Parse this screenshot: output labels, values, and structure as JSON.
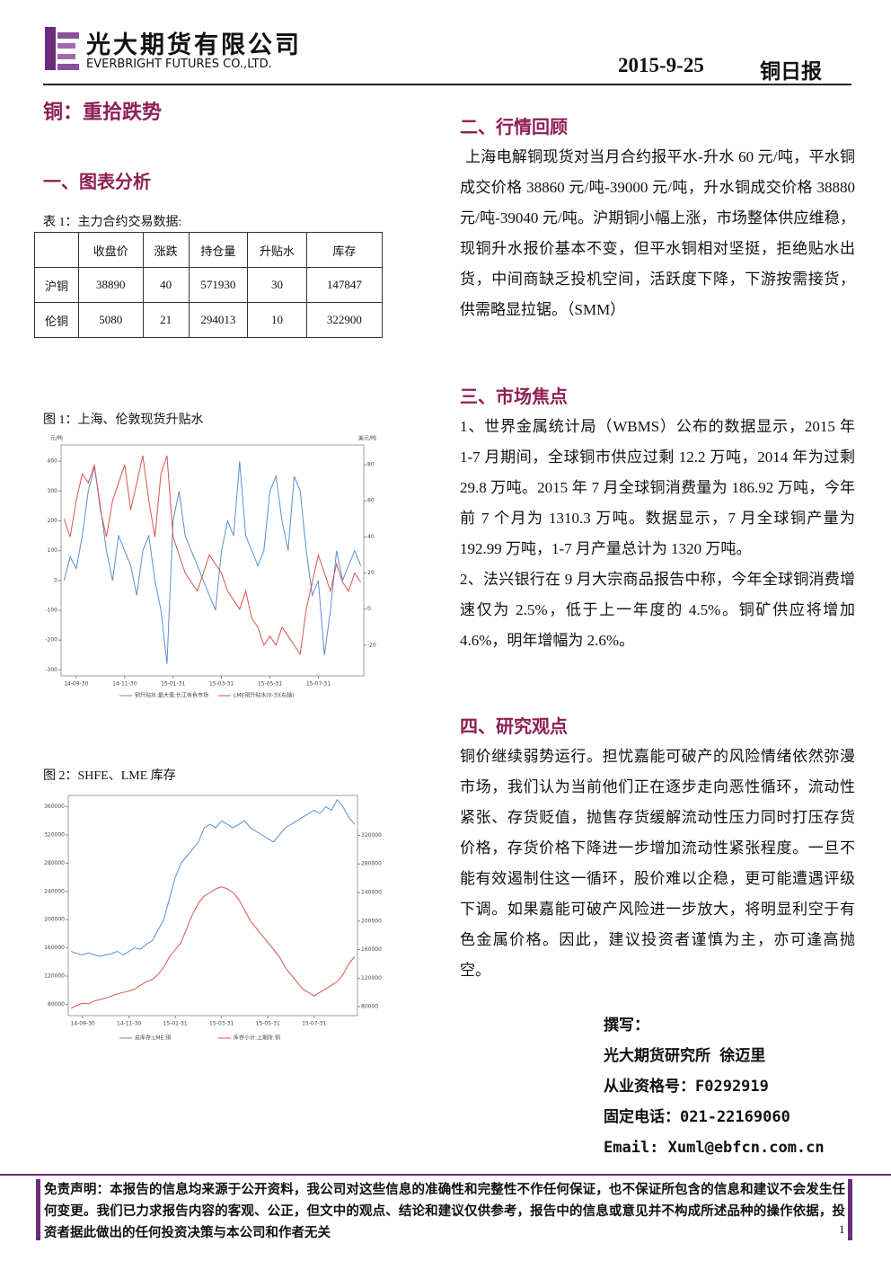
{
  "header": {
    "company_cn": "光大期货有限公司",
    "company_en": "EVERBRIGHT FUTURES CO.,LTD.",
    "date": "2015-9-25",
    "report": "铜日报"
  },
  "title": "铜：重拾跌势",
  "section1": {
    "heading": "一、图表分析"
  },
  "table": {
    "caption": "表 1：主力合约交易数据:",
    "columns": [
      "收盘价",
      "涨跌",
      "持仓量",
      "升贴水",
      "库存"
    ],
    "rows": [
      [
        "沪铜",
        38890,
        40,
        571930,
        30,
        147847
      ],
      [
        "伦铜",
        5080,
        21,
        294013,
        10,
        322900
      ]
    ]
  },
  "chart_data": [
    {
      "type": "line",
      "title": "图 1：上海、伦敦现货升贴水",
      "y_label": "元/吨",
      "y2_label": "美元/吨",
      "categories": [
        null,
        null,
        "14-09-30",
        null,
        null,
        null,
        null,
        null,
        null,
        null,
        "14-11-30",
        null,
        null,
        null,
        null,
        null,
        null,
        null,
        "15-01-31",
        null,
        null,
        null,
        null,
        null,
        null,
        null,
        "15-03-31",
        null,
        null,
        null,
        null,
        null,
        null,
        null,
        "15-05-31",
        null,
        null,
        null,
        null,
        null,
        null,
        null,
        "15-07-31",
        null,
        null,
        null,
        null,
        null,
        null,
        null
      ],
      "ylim": [
        -320,
        455
      ],
      "yticks": [
        -300,
        -200,
        -100,
        0,
        100,
        200,
        300,
        400
      ],
      "y2lim": [
        -37,
        91
      ],
      "y2ticks": [
        -20,
        0,
        20,
        40,
        60,
        80
      ],
      "series": [
        {
          "name": "铜升贴水:最大值:长江有色市场",
          "color": "#5b8fd0",
          "values": [
            0,
            80,
            40,
            150,
            300,
            380,
            250,
            100,
            0,
            150,
            100,
            50,
            -50,
            100,
            150,
            0,
            -100,
            -280,
            200,
            300,
            150,
            100,
            50,
            0,
            -50,
            -100,
            100,
            200,
            150,
            400,
            150,
            100,
            50,
            100,
            300,
            350,
            200,
            100,
            350,
            300,
            100,
            -50,
            0,
            -250,
            -100,
            100,
            0,
            50,
            100,
            50
          ]
        },
        {
          "name": "LME铜升贴水(0-3)(右轴)",
          "color": "#d9534f",
          "axis": "y2",
          "values": [
            50,
            40,
            60,
            75,
            70,
            80,
            55,
            40,
            60,
            70,
            80,
            55,
            70,
            85,
            60,
            40,
            75,
            85,
            40,
            30,
            20,
            15,
            10,
            20,
            30,
            25,
            20,
            10,
            5,
            0,
            10,
            -5,
            -10,
            -20,
            -15,
            -20,
            -10,
            -15,
            -20,
            -25,
            0,
            15,
            30,
            20,
            10,
            25,
            15,
            10,
            20,
            15
          ]
        }
      ]
    },
    {
      "type": "line",
      "title": "图 2：SHFE、LME 库存",
      "categories": [
        null,
        null,
        "14-09-30",
        null,
        null,
        null,
        null,
        null,
        null,
        null,
        "14-11-30",
        null,
        null,
        null,
        null,
        null,
        null,
        null,
        "15-01-31",
        null,
        null,
        null,
        null,
        null,
        null,
        null,
        "15-03-31",
        null,
        null,
        null,
        null,
        null,
        null,
        null,
        "15-05-31",
        null,
        null,
        null,
        null,
        null,
        null,
        null,
        "15-07-31",
        null,
        null,
        null,
        null,
        null,
        null,
        null
      ],
      "ylim": [
        64000,
        376000
      ],
      "yticks": [
        80000,
        120000,
        160000,
        200000,
        240000,
        280000,
        320000,
        360000
      ],
      "y2lim": [
        67500,
        376000
      ],
      "y2ticks": [
        80000,
        120000,
        160000,
        200000,
        240000,
        280000,
        320000
      ],
      "series": [
        {
          "name": "总库存:LME:铜",
          "color": "#5b8fd0",
          "values": [
            155000,
            152000,
            150000,
            153000,
            150000,
            148000,
            150000,
            152000,
            155000,
            150000,
            155000,
            160000,
            158000,
            165000,
            170000,
            185000,
            200000,
            230000,
            260000,
            280000,
            290000,
            300000,
            310000,
            330000,
            335000,
            330000,
            340000,
            335000,
            330000,
            335000,
            340000,
            330000,
            325000,
            320000,
            315000,
            310000,
            320000,
            330000,
            335000,
            340000,
            345000,
            350000,
            355000,
            350000,
            360000,
            355000,
            370000,
            360000,
            345000,
            335000
          ]
        },
        {
          "name": "库存小计:上期所:铜",
          "color": "#d9534f",
          "axis": "y2",
          "values": [
            78000,
            82000,
            85000,
            84000,
            88000,
            90000,
            92000,
            95000,
            98000,
            100000,
            102000,
            105000,
            110000,
            115000,
            118000,
            125000,
            135000,
            150000,
            160000,
            170000,
            190000,
            210000,
            225000,
            235000,
            240000,
            245000,
            248000,
            245000,
            240000,
            230000,
            215000,
            200000,
            190000,
            180000,
            170000,
            160000,
            150000,
            135000,
            125000,
            115000,
            105000,
            100000,
            95000,
            100000,
            105000,
            110000,
            115000,
            125000,
            140000,
            150000
          ]
        }
      ]
    }
  ],
  "sections": [
    {
      "heading": "二、行情回顾",
      "paragraphs": [
        "上海电解铜现货对当月合约报平水-升水 60 元/吨，平水铜成交价格 38860 元/吨-39000 元/吨，升水铜成交价格 38880 元/吨-39040 元/吨。沪期铜小幅上涨，市场整体供应维稳，现铜升水报价基本不变，但平水铜相对坚挺，拒绝贴水出货，中间商缺乏投机空间，活跃度下降，下游按需接货，供需略显拉锯。（SMM）"
      ]
    },
    {
      "heading": "三、市场焦点",
      "paragraphs": [
        "1、世界金属统计局（WBMS）公布的数据显示，2015 年 1-7 月期间，全球铜市供应过剩 12.2 万吨，2014 年为过剩 29.8 万吨。2015 年 7 月全球铜消费量为 186.92 万吨，今年前 7 个月为 1310.3 万吨。数据显示，7 月全球铜产量为 192.99 万吨，1-7 月产量总计为 1320 万吨。",
        "2、法兴银行在 9 月大宗商品报告中称，今年全球铜消费增速仅为 2.5%，低于上一年度的 4.5%。铜矿供应将增加 4.6%，明年增幅为 2.6%。"
      ]
    },
    {
      "heading": "四、研究观点",
      "paragraphs": [
        "铜价继续弱势运行。担忧嘉能可破产的风险情绪依然弥漫市场，我们认为当前他们正在逐步走向恶性循环，流动性紧张、存货贬值，抛售存货缓解流动性压力同时打压存货价格，存货价格下降进一步增加流动性紧张程度。一旦不能有效遏制住这一循环，股价难以企稳，更可能遭遇评级下调。如果嘉能可破产风险进一步放大，将明显利空于有色金属价格。因此，建议投资者谨慎为主，亦可逢高抛空。"
      ]
    }
  ],
  "author": [
    "撰写：",
    "光大期货研究所 徐迈里",
    "从业资格号：F0292919",
    "固定电话：021-22169060",
    "Email: Xuml@ebfcn.com.cn"
  ],
  "footer": {
    "disclaimer": "免责声明：本报告的信息均来源于公开资料，我公司对这些信息的准确性和完整性不作任何保证，也不保证所包含的信息和建议不会发生任何变更。我们已力求报告内容的客观、公正，但文中的观点、结论和建议仅供参考，报告中的信息或意见并不构成所述品种的操作依据，投资者据此做出的任何投资决策与本公司和作者无关",
    "page": 1
  }
}
